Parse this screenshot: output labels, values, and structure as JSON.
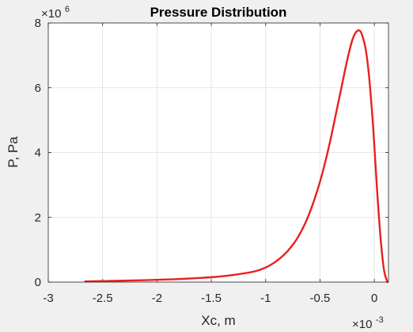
{
  "chart_data": {
    "type": "line",
    "title": "Pressure Distribution",
    "xlabel": "Xc, m",
    "ylabel": "P, Pa",
    "x_multiplier_base": "×10",
    "x_multiplier_exponent": "-3",
    "y_multiplier_base": "×10",
    "y_multiplier_exponent": "6",
    "xlim": [
      -3,
      0.13
    ],
    "ylim": [
      0,
      8
    ],
    "x_ticks": [
      -3,
      -2.5,
      -2,
      -1.5,
      -1,
      -0.5,
      0
    ],
    "x_tick_labels": [
      "-3",
      "-2.5",
      "-2",
      "-1.5",
      "-1",
      "-0.5",
      "0"
    ],
    "y_ticks": [
      0,
      2,
      4,
      6,
      8
    ],
    "y_tick_labels": [
      "0",
      "2",
      "4",
      "6",
      "8"
    ],
    "grid": true,
    "series": [
      {
        "color": "#e8201e",
        "x": [
          -2.66,
          -2.5,
          -2.3,
          -2.1,
          -1.9,
          -1.7,
          -1.5,
          -1.3,
          -1.1,
          -1.0,
          -0.9,
          -0.8,
          -0.7,
          -0.6,
          -0.5,
          -0.42,
          -0.35,
          -0.3,
          -0.25,
          -0.2,
          -0.16,
          -0.13,
          -0.11,
          -0.08,
          -0.05,
          -0.02,
          0.0,
          0.03,
          0.06,
          0.09,
          0.12
        ],
        "y": [
          0.02,
          0.03,
          0.045,
          0.06,
          0.08,
          0.11,
          0.15,
          0.22,
          0.33,
          0.45,
          0.65,
          0.95,
          1.4,
          2.1,
          3.1,
          4.15,
          5.25,
          6.05,
          6.85,
          7.5,
          7.75,
          7.75,
          7.6,
          7.2,
          6.4,
          5.2,
          4.2,
          2.6,
          1.25,
          0.35,
          0.0
        ]
      }
    ]
  }
}
